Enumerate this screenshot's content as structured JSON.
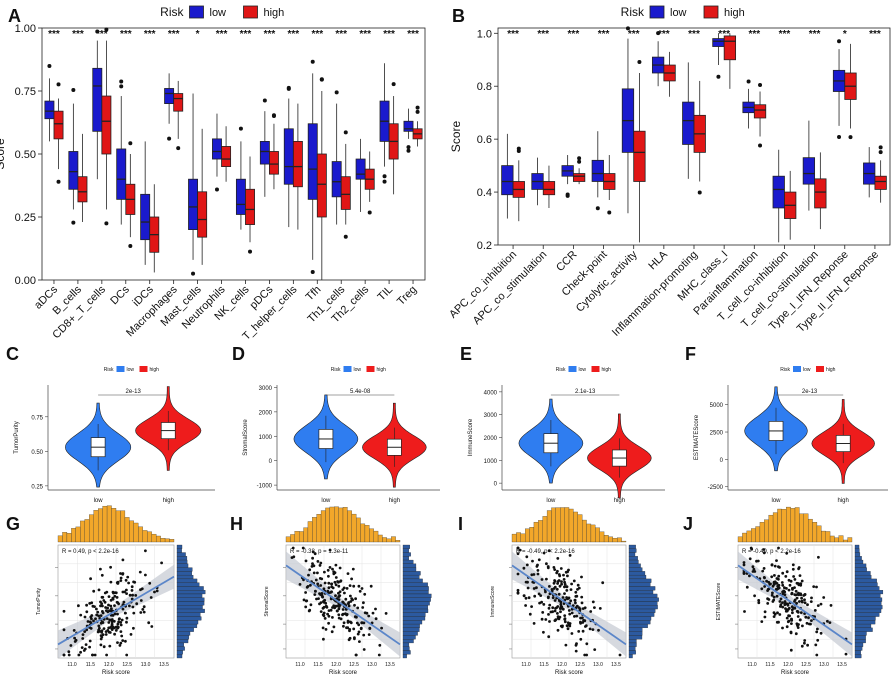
{
  "colors": {
    "low_box": "#1a1acd",
    "high_box": "#e01616",
    "low_violin": "#2f7df0",
    "high_violin": "#ee1c1c",
    "hist": "#f2a72a",
    "hist2": "#2c5aa0",
    "line": "#5b86c9",
    "band": "#c4c9d2"
  },
  "chart_data": [
    {
      "panel": "A",
      "type": "boxplot",
      "ylabel": "Score",
      "ylim": [
        0,
        1
      ],
      "yticks": [
        "0.00",
        "0.25",
        "0.50",
        "0.75",
        "1.00"
      ],
      "legend": {
        "title": "Risk",
        "items": [
          "low",
          "high"
        ],
        "placement": "top"
      },
      "categories": [
        "aDCs",
        "B_cells",
        "CD8+_T_cells",
        "DCs",
        "iDCs",
        "Macrophages",
        "Mast_cells",
        "Neutrophils",
        "NK_cells",
        "pDCs",
        "T_helper_cells",
        "Tfh",
        "Th1_cells",
        "Th2_cells",
        "TIL",
        "Treg"
      ],
      "significance": [
        "***",
        "***",
        "***",
        "***",
        "***",
        "***",
        "*",
        "***",
        "***",
        "***",
        "***",
        "***",
        "***",
        "***",
        "***",
        "***"
      ],
      "series": [
        {
          "name": "low",
          "stats": [
            [
              0.55,
              0.64,
              0.67,
              0.71,
              0.8
            ],
            [
              0.28,
              0.36,
              0.43,
              0.51,
              0.7
            ],
            [
              0.4,
              0.59,
              0.77,
              0.84,
              0.95
            ],
            [
              0.22,
              0.32,
              0.4,
              0.52,
              0.73
            ],
            [
              0.06,
              0.16,
              0.23,
              0.34,
              0.55
            ],
            [
              0.62,
              0.7,
              0.74,
              0.76,
              0.82
            ],
            [
              0.08,
              0.2,
              0.29,
              0.4,
              0.74
            ],
            [
              0.41,
              0.48,
              0.51,
              0.56,
              0.66
            ],
            [
              0.2,
              0.26,
              0.3,
              0.4,
              0.55
            ],
            [
              0.33,
              0.46,
              0.51,
              0.55,
              0.67
            ],
            [
              0.21,
              0.38,
              0.45,
              0.6,
              0.72
            ],
            [
              0.08,
              0.32,
              0.44,
              0.62,
              0.82
            ],
            [
              0.22,
              0.33,
              0.39,
              0.47,
              0.7
            ],
            [
              0.27,
              0.4,
              0.42,
              0.48,
              0.56
            ],
            [
              0.45,
              0.55,
              0.63,
              0.71,
              0.86
            ],
            [
              0.56,
              0.59,
              0.6,
              0.63,
              0.68
            ]
          ]
        },
        {
          "name": "high",
          "stats": [
            [
              0.44,
              0.56,
              0.62,
              0.67,
              0.72
            ],
            [
              0.23,
              0.31,
              0.35,
              0.41,
              0.58
            ],
            [
              0.28,
              0.5,
              0.63,
              0.73,
              0.95
            ],
            [
              0.17,
              0.26,
              0.32,
              0.38,
              0.5
            ],
            [
              0.03,
              0.11,
              0.18,
              0.25,
              0.38
            ],
            [
              0.56,
              0.67,
              0.72,
              0.74,
              0.79
            ],
            [
              0.06,
              0.17,
              0.24,
              0.35,
              0.6
            ],
            [
              0.39,
              0.45,
              0.48,
              0.53,
              0.61
            ],
            [
              0.15,
              0.22,
              0.28,
              0.36,
              0.49
            ],
            [
              0.36,
              0.42,
              0.46,
              0.51,
              0.62
            ],
            [
              0.2,
              0.37,
              0.45,
              0.55,
              0.7
            ],
            [
              0.0,
              0.25,
              0.38,
              0.5,
              0.75
            ],
            [
              0.22,
              0.28,
              0.34,
              0.41,
              0.54
            ],
            [
              0.31,
              0.36,
              0.4,
              0.44,
              0.51
            ],
            [
              0.34,
              0.48,
              0.55,
              0.62,
              0.73
            ],
            [
              0.53,
              0.56,
              0.58,
              0.6,
              0.63
            ]
          ]
        }
      ]
    },
    {
      "panel": "B",
      "type": "boxplot",
      "ylabel": "Score",
      "ylim": [
        0.2,
        1.02
      ],
      "yticks": [
        "0.2",
        "0.4",
        "0.6",
        "0.8",
        "1.0"
      ],
      "legend": {
        "title": "Risk",
        "items": [
          "low",
          "high"
        ],
        "placement": "top"
      },
      "categories": [
        "APC_co_inhibition",
        "APC_co_stimulation",
        "CCR",
        "Check-point",
        "Cytolytic_activity",
        "HLA",
        "Inflammation-promoting",
        "MHC_class_I",
        "Parainflammation",
        "T_cell_co-inhibition",
        "T_cell_co-stimulation",
        "Type_I_IFN_Reponse",
        "Type_II_IFN_Reponse"
      ],
      "significance": [
        "***",
        "***",
        "***",
        "***",
        "***",
        "***",
        "***",
        "***",
        "***",
        "***",
        "***",
        "*",
        "***"
      ],
      "series": [
        {
          "name": "low",
          "stats": [
            [
              0.3,
              0.39,
              0.44,
              0.5,
              0.62
            ],
            [
              0.35,
              0.41,
              0.44,
              0.47,
              0.53
            ],
            [
              0.43,
              0.46,
              0.48,
              0.5,
              0.54
            ],
            [
              0.38,
              0.44,
              0.47,
              0.52,
              0.63
            ],
            [
              0.32,
              0.55,
              0.67,
              0.79,
              0.98
            ],
            [
              0.8,
              0.85,
              0.88,
              0.91,
              0.97
            ],
            [
              0.45,
              0.58,
              0.67,
              0.74,
              0.89
            ],
            [
              0.88,
              0.95,
              0.97,
              0.98,
              1.0
            ],
            [
              0.64,
              0.7,
              0.72,
              0.74,
              0.79
            ],
            [
              0.21,
              0.34,
              0.41,
              0.46,
              0.56
            ],
            [
              0.33,
              0.43,
              0.47,
              0.53,
              0.67
            ],
            [
              0.65,
              0.78,
              0.82,
              0.86,
              0.94
            ],
            [
              0.38,
              0.43,
              0.47,
              0.51,
              0.57
            ]
          ]
        },
        {
          "name": "high",
          "stats": [
            [
              0.29,
              0.38,
              0.41,
              0.44,
              0.52
            ],
            [
              0.34,
              0.39,
              0.41,
              0.44,
              0.5
            ],
            [
              0.43,
              0.44,
              0.46,
              0.47,
              0.49
            ],
            [
              0.37,
              0.41,
              0.44,
              0.47,
              0.54
            ],
            [
              0.21,
              0.44,
              0.55,
              0.63,
              0.85
            ],
            [
              0.76,
              0.82,
              0.85,
              0.88,
              0.93
            ],
            [
              0.44,
              0.55,
              0.62,
              0.69,
              0.82
            ],
            [
              0.79,
              0.9,
              0.97,
              0.99,
              1.0
            ],
            [
              0.61,
              0.68,
              0.71,
              0.73,
              0.78
            ],
            [
              0.22,
              0.3,
              0.35,
              0.4,
              0.48
            ],
            [
              0.26,
              0.34,
              0.4,
              0.45,
              0.55
            ],
            [
              0.64,
              0.75,
              0.8,
              0.85,
              0.96
            ],
            [
              0.36,
              0.41,
              0.44,
              0.46,
              0.52
            ]
          ]
        }
      ]
    },
    {
      "panel": "C",
      "type": "violin",
      "ylabel": "TumorPurity",
      "xcats": [
        "low",
        "high"
      ],
      "pvalue": "2e-13",
      "ylim": [
        0.22,
        0.98
      ],
      "yticks": [
        "0.25",
        "0.50",
        "0.75"
      ],
      "legend_title": "Risk",
      "medians": [
        0.53,
        0.65
      ]
    },
    {
      "panel": "D",
      "type": "violin",
      "ylabel": "StromalScore",
      "xcats": [
        "low",
        "high"
      ],
      "pvalue": "5.4e-08",
      "ylim": [
        -1200,
        3100
      ],
      "yticks": [
        "-1000",
        "0",
        "1000",
        "2000",
        "3000"
      ],
      "legend_title": "Risk",
      "medians": [
        890,
        550
      ]
    },
    {
      "panel": "E",
      "type": "violin",
      "ylabel": "ImmuneScore",
      "xcats": [
        "low",
        "high"
      ],
      "pvalue": "2.1e-13",
      "ylim": [
        -300,
        4300
      ],
      "yticks": [
        "0",
        "1000",
        "2000",
        "3000",
        "4000"
      ],
      "legend_title": "Risk",
      "medians": [
        1750,
        1100
      ]
    },
    {
      "panel": "F",
      "type": "violin",
      "ylabel": "ESTIMATEScore",
      "xcats": [
        "low",
        "high"
      ],
      "pvalue": "2e-13",
      "ylim": [
        -2800,
        6800
      ],
      "yticks": [
        "-2500",
        "0",
        "2500",
        "5000"
      ],
      "legend_title": "Risk",
      "medians": [
        2600,
        1450
      ]
    },
    {
      "panel": "G",
      "type": "scatter",
      "xlabel": "Risk score",
      "ylabel": "TumorPurity",
      "annotation": "R = 0.49, p < 2.2e-16",
      "xticks": [
        "11.0",
        "11.5",
        "12.0",
        "12.5",
        "13.0",
        "13.5"
      ],
      "trend": "positive"
    },
    {
      "panel": "H",
      "type": "scatter",
      "xlabel": "Risk score",
      "ylabel": "StromalScore",
      "annotation": "R = -0.38, p = 1.3e-11",
      "xticks": [
        "11.0",
        "11.5",
        "12.0",
        "12.5",
        "13.0",
        "13.5"
      ],
      "trend": "negative"
    },
    {
      "panel": "I",
      "type": "scatter",
      "xlabel": "Risk score",
      "ylabel": "ImmuneScore",
      "annotation": "R = -0.49, p < 2.2e-16",
      "xticks": [
        "11.0",
        "11.5",
        "12.0",
        "12.5",
        "13.0",
        "13.5"
      ],
      "trend": "negative"
    },
    {
      "panel": "J",
      "type": "scatter",
      "xlabel": "Risk score",
      "ylabel": "ESTIMATEScore",
      "annotation": "R = -0.49, p < 2.2e-16",
      "xticks": [
        "11.0",
        "11.5",
        "12.0",
        "12.5",
        "13.0",
        "13.5"
      ],
      "trend": "negative"
    }
  ]
}
